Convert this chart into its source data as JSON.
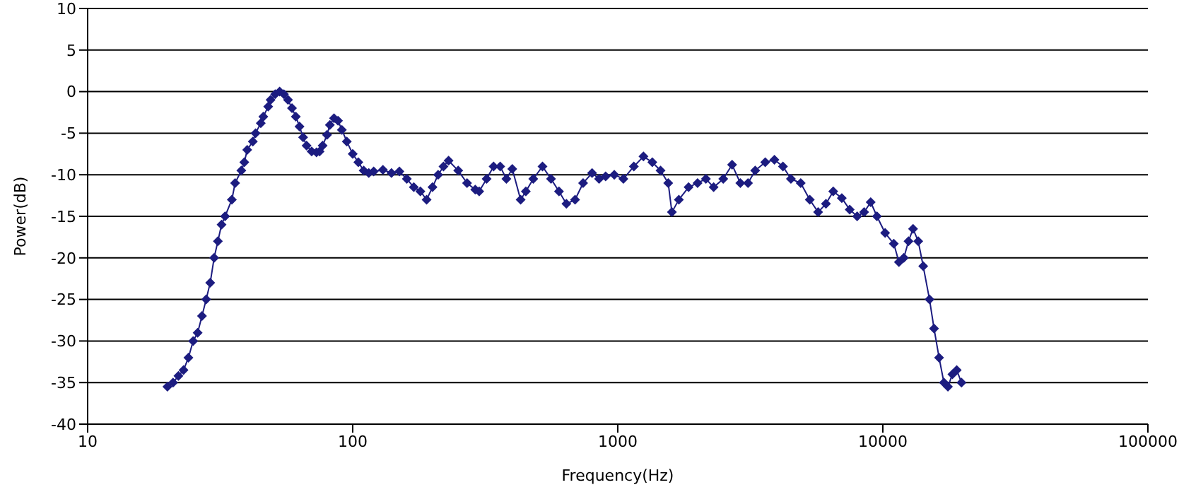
{
  "chart_data": {
    "type": "line",
    "xlabel": "Frequency(Hz)",
    "ylabel": "Power(dB)",
    "log": "x",
    "xlim": [
      10,
      100000
    ],
    "xticks": [
      10,
      100,
      1000,
      10000,
      100000
    ],
    "ylim": [
      -40,
      10
    ],
    "yticks": [
      -40,
      -35,
      -30,
      -25,
      -20,
      -15,
      -10,
      -5,
      0,
      5,
      10
    ],
    "grid": "y",
    "marker": "diamond",
    "line_style": "solid",
    "legend": false,
    "x": [
      20,
      21,
      22,
      23,
      24,
      25,
      26,
      27,
      28,
      29,
      30,
      31,
      32,
      33,
      35,
      36,
      38,
      39,
      40,
      42,
      43,
      45,
      46,
      48,
      49,
      51,
      53,
      55,
      57,
      59,
      61,
      63,
      65,
      67,
      70,
      73,
      75,
      77,
      80,
      82,
      85,
      88,
      91,
      95,
      100,
      105,
      110,
      115,
      120,
      130,
      140,
      150,
      160,
      170,
      180,
      190,
      200,
      210,
      220,
      230,
      250,
      270,
      290,
      300,
      320,
      340,
      360,
      380,
      400,
      430,
      450,
      480,
      520,
      560,
      600,
      640,
      690,
      740,
      800,
      850,
      900,
      970,
      1050,
      1150,
      1250,
      1350,
      1450,
      1550,
      1600,
      1700,
      1850,
      2000,
      2150,
      2300,
      2500,
      2700,
      2900,
      3100,
      3300,
      3600,
      3900,
      4200,
      4500,
      4900,
      5300,
      5700,
      6100,
      6500,
      7000,
      7500,
      8000,
      8500,
      9000,
      9500,
      10200,
      11000,
      11500,
      12000,
      12500,
      13000,
      13600,
      14200,
      15000,
      15600,
      16300,
      17000,
      17600,
      18300,
      19000,
      19800
    ],
    "series": [
      {
        "color": "#1c1c80",
        "values": [
          -35.5,
          -35,
          -34.2,
          -33.5,
          -32,
          -30,
          -29,
          -27,
          -25,
          -23,
          -20,
          -18,
          -16,
          -15,
          -13,
          -11,
          -9.5,
          -8.5,
          -7,
          -6,
          -5,
          -3.8,
          -3,
          -1.8,
          -1,
          -0.3,
          0,
          -0.3,
          -1,
          -2,
          -3,
          -4.2,
          -5.5,
          -6.5,
          -7.2,
          -7.3,
          -7.2,
          -6.5,
          -5.2,
          -4,
          -3.2,
          -3.5,
          -4.6,
          -6,
          -7.5,
          -8.5,
          -9.5,
          -9.8,
          -9.6,
          -9.4,
          -9.8,
          -9.6,
          -10.5,
          -11.5,
          -12,
          -13,
          -11.5,
          -10,
          -9,
          -8.3,
          -9.5,
          -11,
          -11.8,
          -12,
          -10.5,
          -9,
          -9,
          -10.5,
          -9.3,
          -13,
          -12,
          -10.5,
          -9,
          -10.5,
          -12,
          -13.5,
          -13,
          -11,
          -9.8,
          -10.5,
          -10.2,
          -10,
          -10.5,
          -9,
          -7.8,
          -8.5,
          -9.5,
          -11,
          -14.5,
          -13,
          -11.5,
          -11,
          -10.5,
          -11.5,
          -10.5,
          -8.8,
          -11,
          -11,
          -9.5,
          -8.5,
          -8.2,
          -9,
          -10.5,
          -11,
          -13,
          -14.5,
          -13.5,
          -12,
          -12.8,
          -14.2,
          -15,
          -14.5,
          -13.3,
          -15,
          -17,
          -18.3,
          -20.5,
          -20,
          -18,
          -16.5,
          -18,
          -21,
          -25,
          -28.5,
          -32,
          -35,
          -35.5,
          -34,
          -33.5,
          -35
        ]
      }
    ]
  }
}
